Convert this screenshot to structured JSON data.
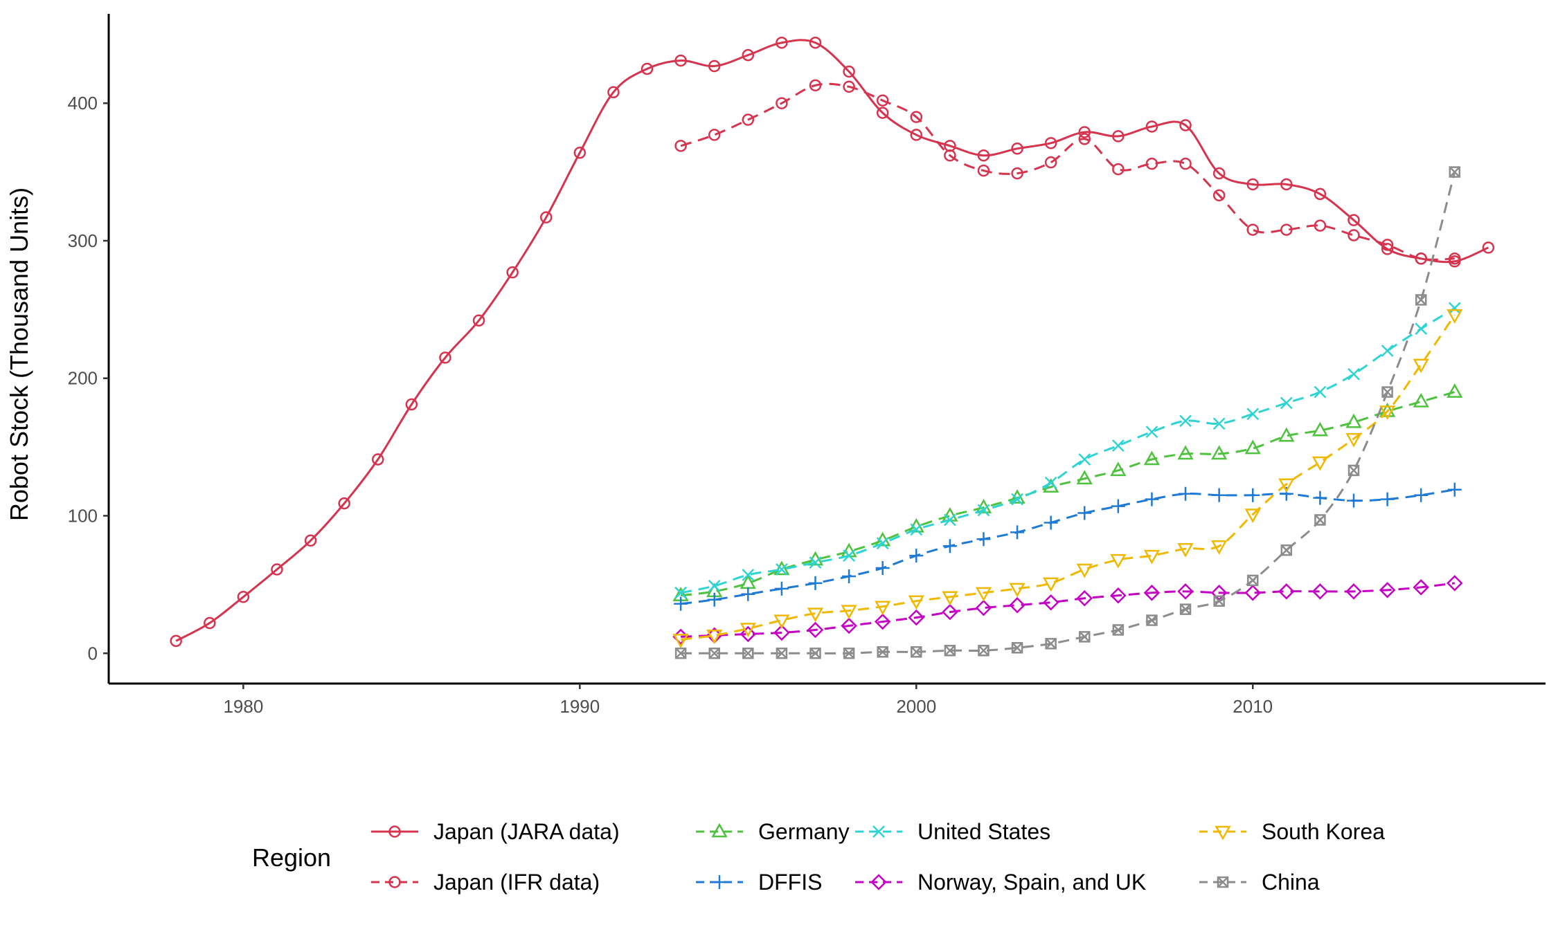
{
  "chart_data": {
    "type": "line",
    "title": "",
    "xlabel": "",
    "ylabel": "Robot Stock (Thousand Units)",
    "xlim": [
      1976,
      2018.7
    ],
    "ylim": [
      -22,
      465
    ],
    "x_ticks": [
      1980,
      1990,
      2000,
      2010
    ],
    "y_ticks": [
      0,
      100,
      200,
      300,
      400
    ],
    "grid": false,
    "legend": {
      "title": "Region",
      "position": "bottom"
    },
    "series": [
      {
        "name": "Japan (JARA data)",
        "color": "#d6334e",
        "dash": "solid",
        "marker": "circle",
        "x": [
          1978,
          1979,
          1980,
          1981,
          1982,
          1983,
          1984,
          1985,
          1986,
          1987,
          1988,
          1989,
          1990,
          1991,
          1992,
          1993,
          1994,
          1995,
          1996,
          1997,
          1998,
          1999,
          2000,
          2001,
          2002,
          2003,
          2004,
          2005,
          2006,
          2007,
          2008,
          2009,
          2010,
          2011,
          2012,
          2013,
          2014,
          2015,
          2016,
          2017
        ],
        "values": [
          9,
          22,
          41,
          61,
          82,
          109,
          141,
          181,
          215,
          242,
          277,
          317,
          364,
          408,
          425,
          431,
          427,
          435,
          444,
          444,
          423,
          393,
          377,
          369,
          362,
          367,
          371,
          379,
          376,
          383,
          384,
          349,
          341,
          341,
          334,
          315,
          294,
          287,
          285,
          295
        ]
      },
      {
        "name": "Japan (IFR data)",
        "color": "#d6334e",
        "dash": "dashed",
        "marker": "circle",
        "x": [
          1993,
          1994,
          1995,
          1996,
          1997,
          1998,
          1999,
          2000,
          2001,
          2002,
          2003,
          2004,
          2005,
          2006,
          2007,
          2008,
          2009,
          2010,
          2011,
          2012,
          2013,
          2014,
          2015,
          2016
        ],
        "values": [
          369,
          377,
          388,
          400,
          413,
          412,
          402,
          390,
          362,
          351,
          349,
          357,
          374,
          352,
          356,
          356,
          333,
          308,
          308,
          311,
          304,
          297,
          287,
          287
        ]
      },
      {
        "name": "Germany",
        "color": "#4ec23e",
        "dash": "dashed",
        "marker": "triangle-up",
        "x": [
          1993,
          1994,
          1995,
          1996,
          1997,
          1998,
          1999,
          2000,
          2001,
          2002,
          2003,
          2004,
          2005,
          2006,
          2007,
          2008,
          2009,
          2010,
          2011,
          2012,
          2013,
          2014,
          2015,
          2016
        ],
        "values": [
          42,
          45,
          51,
          61,
          68,
          74,
          82,
          92,
          100,
          106,
          113,
          121,
          127,
          133,
          141,
          145,
          145,
          149,
          158,
          162,
          168,
          176,
          183,
          190
        ]
      },
      {
        "name": "DFFIS",
        "color": "#1f7ad6",
        "dash": "dashed",
        "marker": "plus",
        "x": [
          1993,
          1994,
          1995,
          1996,
          1997,
          1998,
          1999,
          2000,
          2001,
          2002,
          2003,
          2004,
          2005,
          2006,
          2007,
          2008,
          2009,
          2010,
          2011,
          2012,
          2013,
          2014,
          2015,
          2016
        ],
        "values": [
          36,
          39,
          43,
          47,
          51,
          56,
          62,
          71,
          78,
          83,
          88,
          95,
          102,
          107,
          112,
          116,
          115,
          115,
          116,
          113,
          111,
          112,
          115,
          119
        ]
      },
      {
        "name": "United States",
        "color": "#2ed4d4",
        "dash": "dashed",
        "marker": "cross",
        "x": [
          1993,
          1994,
          1995,
          1996,
          1997,
          1998,
          1999,
          2000,
          2001,
          2002,
          2003,
          2004,
          2005,
          2006,
          2007,
          2008,
          2009,
          2010,
          2011,
          2012,
          2013,
          2014,
          2015,
          2016
        ],
        "values": [
          44,
          49,
          57,
          61,
          66,
          71,
          80,
          90,
          97,
          104,
          112,
          124,
          141,
          151,
          161,
          169,
          167,
          174,
          182,
          190,
          203,
          220,
          236,
          251
        ]
      },
      {
        "name": "Norway, Spain, and UK",
        "color": "#c400c4",
        "dash": "dashed",
        "marker": "diamond",
        "x": [
          1993,
          1994,
          1995,
          1996,
          1997,
          1998,
          1999,
          2000,
          2001,
          2002,
          2003,
          2004,
          2005,
          2006,
          2007,
          2008,
          2009,
          2010,
          2011,
          2012,
          2013,
          2014,
          2015,
          2016
        ],
        "values": [
          12,
          13,
          14,
          15,
          17,
          20,
          23,
          26,
          30,
          33,
          35,
          37,
          40,
          42,
          44,
          45,
          44,
          44,
          45,
          45,
          45,
          46,
          48,
          51
        ]
      },
      {
        "name": "South Korea",
        "color": "#f0b800",
        "dash": "dashed",
        "marker": "triangle-down",
        "x": [
          1993,
          1994,
          1995,
          1996,
          1997,
          1998,
          1999,
          2000,
          2001,
          2002,
          2003,
          2004,
          2005,
          2006,
          2007,
          2008,
          2009,
          2010,
          2011,
          2012,
          2013,
          2014,
          2015,
          2016
        ],
        "values": [
          10,
          13,
          18,
          24,
          29,
          31,
          34,
          38,
          41,
          44,
          47,
          51,
          61,
          68,
          71,
          76,
          78,
          101,
          123,
          139,
          156,
          176,
          210,
          246
        ]
      },
      {
        "name": "China",
        "color": "#8c8c8c",
        "dash": "dashed",
        "marker": "square-x",
        "x": [
          1993,
          1994,
          1995,
          1996,
          1997,
          1998,
          1999,
          2000,
          2001,
          2002,
          2003,
          2004,
          2005,
          2006,
          2007,
          2008,
          2009,
          2010,
          2011,
          2012,
          2013,
          2014,
          2015,
          2016
        ],
        "values": [
          0,
          0,
          0,
          0,
          0,
          0,
          1,
          1,
          2,
          2,
          4,
          7,
          12,
          17,
          24,
          32,
          38,
          53,
          75,
          97,
          133,
          190,
          257,
          350
        ]
      }
    ]
  }
}
